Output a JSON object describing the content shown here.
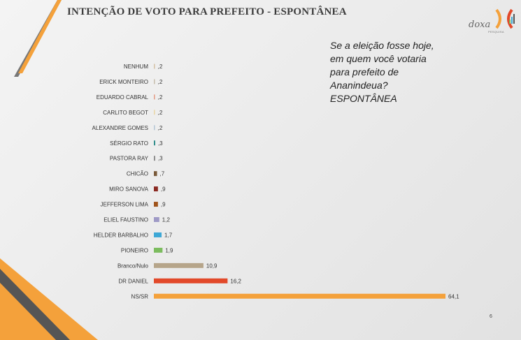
{
  "slide": {
    "title": "INTENÇÃO DE VOTO PARA PREFEITO - ESPONTÂNEA",
    "question_lines": [
      "Se a eleição fosse hoje,",
      "em quem você votaria",
      "para prefeito de",
      "Ananindeua?",
      "ESPONTÂNEA"
    ],
    "logo": {
      "word": "doxa",
      "sub": "PESQUISA"
    },
    "page_number": "6"
  },
  "chart_data": {
    "type": "bar",
    "orientation": "horizontal",
    "title": "",
    "xlabel": "",
    "ylabel": "",
    "categories": [
      "NENHUM",
      "ERICK MONTEIRO",
      "EDUARDO CABRAL",
      "CARLITO BEGOT",
      "ALEXANDRE GOMES",
      "SÉRGIO RATO",
      "PASTORA RAY",
      "CHICÃO",
      "MIRO SANOVA",
      "JEFFERSON LIMA",
      "ELIEL FAUSTINO",
      "HELDER BARBALHO",
      "PIONEIRO",
      "Branco/Nulo",
      "DR DANIEL",
      "NS/SR"
    ],
    "values": [
      0.2,
      0.2,
      0.2,
      0.2,
      0.2,
      0.3,
      0.3,
      0.7,
      0.9,
      0.9,
      1.2,
      1.7,
      1.9,
      10.9,
      16.2,
      64.1
    ],
    "value_labels": [
      ",2",
      ",2",
      ",2",
      ",2",
      ",2",
      ",3",
      ",3",
      ",7",
      ",9",
      ",9",
      "1,2",
      "1,7",
      "1,9",
      "10,9",
      "16,2",
      "64,1"
    ],
    "colors": [
      "#d6c4a8",
      "#c9c0b0",
      "#e5a08a",
      "#ead7a8",
      "#b7c8d6",
      "#2c8c8a",
      "#8d8d8d",
      "#7a5a3a",
      "#8b2a22",
      "#a0541c",
      "#9f9ac6",
      "#3ea8d6",
      "#7cbc5e",
      "#b6a58a",
      "#e2492a",
      "#f4a13b"
    ],
    "xlim": [
      0,
      64.1
    ],
    "grid": false,
    "legend": "none"
  }
}
